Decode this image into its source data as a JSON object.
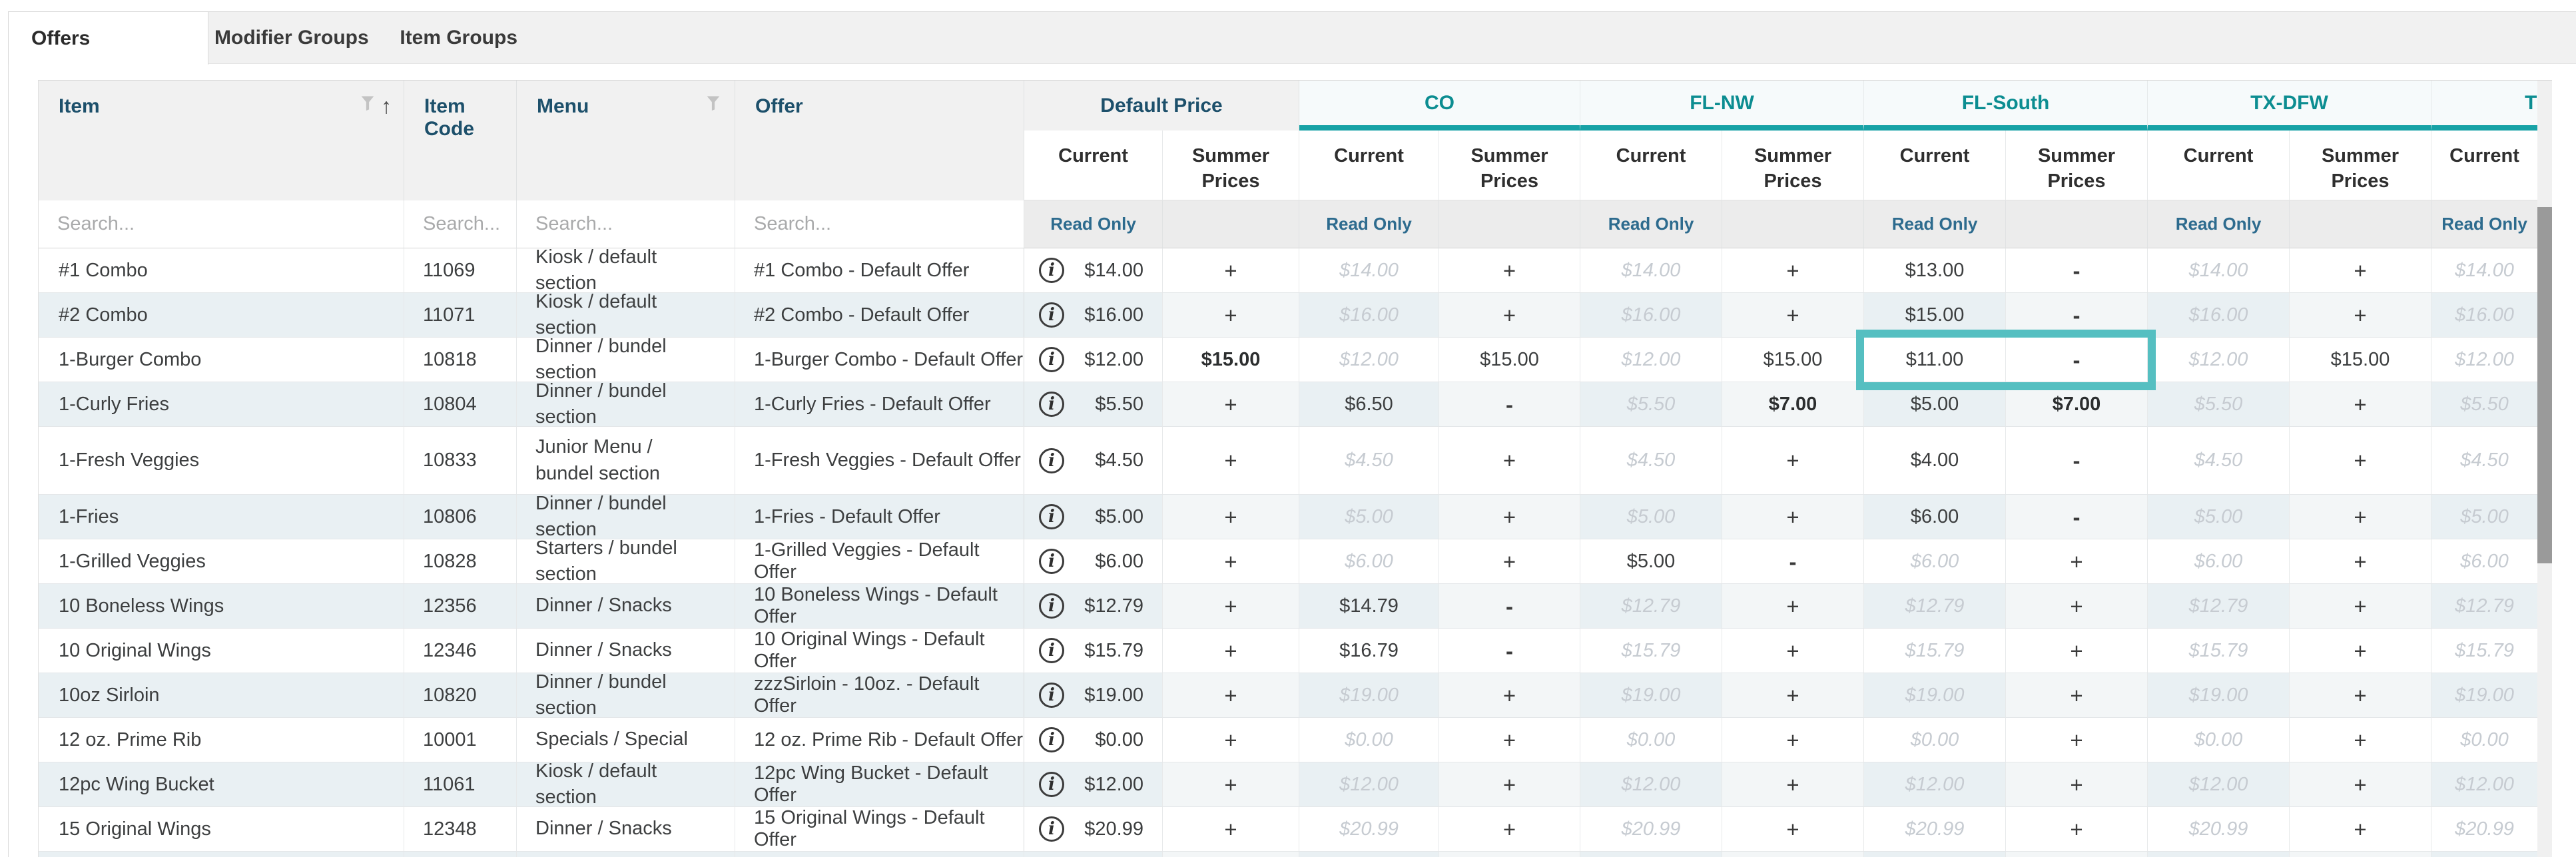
{
  "tabs": {
    "items": [
      {
        "label": "Offers",
        "active": true
      },
      {
        "label": "Modifier Groups",
        "active": false
      },
      {
        "label": "Item Groups",
        "active": false
      }
    ]
  },
  "table": {
    "search_placeholder": "Search...",
    "read_only_label": "Read Only",
    "columns": {
      "item": "Item",
      "item_code": "Item Code",
      "menu": "Menu",
      "offer": "Offer"
    },
    "sub_columns": {
      "current": "Current",
      "summer": "Summer Prices"
    },
    "groups": [
      {
        "label": "Default Price",
        "type": "default"
      },
      {
        "label": "CO",
        "type": "region"
      },
      {
        "label": "FL-NW",
        "type": "region"
      },
      {
        "label": "FL-South",
        "type": "region"
      },
      {
        "label": "TX-DFW",
        "type": "region"
      },
      {
        "label": "TX",
        "type": "region",
        "truncated": true
      }
    ],
    "highlight": {
      "item": "1-Burger Combo",
      "group": "FL-South"
    },
    "rows": [
      {
        "item": "#1 Combo",
        "code": "11069",
        "menu": "Kiosk / default section",
        "offer": "#1 Combo - Default Offer",
        "cells": [
          {
            "t": "$14.00",
            "s": "ovr"
          },
          {
            "t": "+",
            "s": "btn"
          },
          {
            "t": "$14.00",
            "s": "inh"
          },
          {
            "t": "+",
            "s": "btn"
          },
          {
            "t": "$14.00",
            "s": "inh"
          },
          {
            "t": "+",
            "s": "btn"
          },
          {
            "t": "$13.00",
            "s": "ovr"
          },
          {
            "t": "-",
            "s": "btn"
          },
          {
            "t": "$14.00",
            "s": "inh"
          },
          {
            "t": "+",
            "s": "btn"
          },
          {
            "t": "$14.00",
            "s": "inh"
          }
        ]
      },
      {
        "item": "#2 Combo",
        "code": "11071",
        "menu": "Kiosk / default section",
        "offer": "#2 Combo - Default Offer",
        "cells": [
          {
            "t": "$16.00",
            "s": "ovr"
          },
          {
            "t": "+",
            "s": "btn"
          },
          {
            "t": "$16.00",
            "s": "inh"
          },
          {
            "t": "+",
            "s": "btn"
          },
          {
            "t": "$16.00",
            "s": "inh"
          },
          {
            "t": "+",
            "s": "btn"
          },
          {
            "t": "$15.00",
            "s": "ovr"
          },
          {
            "t": "-",
            "s": "btn"
          },
          {
            "t": "$16.00",
            "s": "inh"
          },
          {
            "t": "+",
            "s": "btn"
          },
          {
            "t": "$16.00",
            "s": "inh"
          }
        ]
      },
      {
        "item": "1-Burger Combo",
        "code": "10818",
        "menu": "Dinner / bundel section",
        "offer": "1-Burger Combo - Default Offer",
        "cells": [
          {
            "t": "$12.00",
            "s": "ovr"
          },
          {
            "t": "$15.00",
            "s": "b"
          },
          {
            "t": "$12.00",
            "s": "inh"
          },
          {
            "t": "$15.00",
            "s": "ovr"
          },
          {
            "t": "$12.00",
            "s": "inh"
          },
          {
            "t": "$15.00",
            "s": "ovr"
          },
          {
            "t": "$11.00",
            "s": "ovr"
          },
          {
            "t": "-",
            "s": "btn"
          },
          {
            "t": "$12.00",
            "s": "inh"
          },
          {
            "t": "$15.00",
            "s": "ovr"
          },
          {
            "t": "$12.00",
            "s": "inh"
          }
        ]
      },
      {
        "item": "1-Curly Fries",
        "code": "10804",
        "menu": "Dinner / bundel section",
        "offer": "1-Curly Fries - Default Offer",
        "cells": [
          {
            "t": "$5.50",
            "s": "ovr"
          },
          {
            "t": "+",
            "s": "btn"
          },
          {
            "t": "$6.50",
            "s": "ovr"
          },
          {
            "t": "-",
            "s": "btn"
          },
          {
            "t": "$5.50",
            "s": "inh"
          },
          {
            "t": "$7.00",
            "s": "b"
          },
          {
            "t": "$5.00",
            "s": "ovr"
          },
          {
            "t": "$7.00",
            "s": "b"
          },
          {
            "t": "$5.50",
            "s": "inh"
          },
          {
            "t": "+",
            "s": "btn"
          },
          {
            "t": "$5.50",
            "s": "inh"
          }
        ]
      },
      {
        "item": "1-Fresh Veggies",
        "code": "10833",
        "menu": "Junior Menu / bundel section",
        "offer": "1-Fresh Veggies - Default Offer",
        "cells": [
          {
            "t": "$4.50",
            "s": "ovr"
          },
          {
            "t": "+",
            "s": "btn"
          },
          {
            "t": "$4.50",
            "s": "inh"
          },
          {
            "t": "+",
            "s": "btn"
          },
          {
            "t": "$4.50",
            "s": "inh"
          },
          {
            "t": "+",
            "s": "btn"
          },
          {
            "t": "$4.00",
            "s": "ovr"
          },
          {
            "t": "-",
            "s": "btn"
          },
          {
            "t": "$4.50",
            "s": "inh"
          },
          {
            "t": "+",
            "s": "btn"
          },
          {
            "t": "$4.50",
            "s": "inh"
          }
        ]
      },
      {
        "item": "1-Fries",
        "code": "10806",
        "menu": "Dinner / bundel section",
        "offer": "1-Fries - Default Offer",
        "cells": [
          {
            "t": "$5.00",
            "s": "ovr"
          },
          {
            "t": "+",
            "s": "btn"
          },
          {
            "t": "$5.00",
            "s": "inh"
          },
          {
            "t": "+",
            "s": "btn"
          },
          {
            "t": "$5.00",
            "s": "inh"
          },
          {
            "t": "+",
            "s": "btn"
          },
          {
            "t": "$6.00",
            "s": "ovr"
          },
          {
            "t": "-",
            "s": "btn"
          },
          {
            "t": "$5.00",
            "s": "inh"
          },
          {
            "t": "+",
            "s": "btn"
          },
          {
            "t": "$5.00",
            "s": "inh"
          }
        ]
      },
      {
        "item": "1-Grilled Veggies",
        "code": "10828",
        "menu": "Starters / bundel section",
        "offer": "1-Grilled Veggies - Default Offer",
        "cells": [
          {
            "t": "$6.00",
            "s": "ovr"
          },
          {
            "t": "+",
            "s": "btn"
          },
          {
            "t": "$6.00",
            "s": "inh"
          },
          {
            "t": "+",
            "s": "btn"
          },
          {
            "t": "$5.00",
            "s": "ovr"
          },
          {
            "t": "-",
            "s": "btn"
          },
          {
            "t": "$6.00",
            "s": "inh"
          },
          {
            "t": "+",
            "s": "btn"
          },
          {
            "t": "$6.00",
            "s": "inh"
          },
          {
            "t": "+",
            "s": "btn"
          },
          {
            "t": "$6.00",
            "s": "inh"
          }
        ]
      },
      {
        "item": "10 Boneless Wings",
        "code": "12356",
        "menu": "Dinner / Snacks",
        "offer": "10 Boneless Wings - Default Offer",
        "cells": [
          {
            "t": "$12.79",
            "s": "ovr"
          },
          {
            "t": "+",
            "s": "btn"
          },
          {
            "t": "$14.79",
            "s": "ovr"
          },
          {
            "t": "-",
            "s": "btn"
          },
          {
            "t": "$12.79",
            "s": "inh"
          },
          {
            "t": "+",
            "s": "btn"
          },
          {
            "t": "$12.79",
            "s": "inh"
          },
          {
            "t": "+",
            "s": "btn"
          },
          {
            "t": "$12.79",
            "s": "inh"
          },
          {
            "t": "+",
            "s": "btn"
          },
          {
            "t": "$12.79",
            "s": "inh"
          }
        ]
      },
      {
        "item": "10 Original Wings",
        "code": "12346",
        "menu": "Dinner / Snacks",
        "offer": "10 Original Wings - Default Offer",
        "cells": [
          {
            "t": "$15.79",
            "s": "ovr"
          },
          {
            "t": "+",
            "s": "btn"
          },
          {
            "t": "$16.79",
            "s": "ovr"
          },
          {
            "t": "-",
            "s": "btn"
          },
          {
            "t": "$15.79",
            "s": "inh"
          },
          {
            "t": "+",
            "s": "btn"
          },
          {
            "t": "$15.79",
            "s": "inh"
          },
          {
            "t": "+",
            "s": "btn"
          },
          {
            "t": "$15.79",
            "s": "inh"
          },
          {
            "t": "+",
            "s": "btn"
          },
          {
            "t": "$15.79",
            "s": "inh"
          }
        ]
      },
      {
        "item": "10oz Sirloin",
        "code": "10820",
        "menu": "Dinner / bundel section",
        "offer": "zzzSirloin - 10oz. - Default Offer",
        "cells": [
          {
            "t": "$19.00",
            "s": "ovr"
          },
          {
            "t": "+",
            "s": "btn"
          },
          {
            "t": "$19.00",
            "s": "inh"
          },
          {
            "t": "+",
            "s": "btn"
          },
          {
            "t": "$19.00",
            "s": "inh"
          },
          {
            "t": "+",
            "s": "btn"
          },
          {
            "t": "$19.00",
            "s": "inh"
          },
          {
            "t": "+",
            "s": "btn"
          },
          {
            "t": "$19.00",
            "s": "inh"
          },
          {
            "t": "+",
            "s": "btn"
          },
          {
            "t": "$19.00",
            "s": "inh"
          }
        ]
      },
      {
        "item": "12 oz. Prime Rib",
        "code": "10001",
        "menu": "Specials / Special",
        "offer": "12 oz. Prime Rib - Default Offer",
        "cells": [
          {
            "t": "$0.00",
            "s": "ovr"
          },
          {
            "t": "+",
            "s": "btn"
          },
          {
            "t": "$0.00",
            "s": "inh"
          },
          {
            "t": "+",
            "s": "btn"
          },
          {
            "t": "$0.00",
            "s": "inh"
          },
          {
            "t": "+",
            "s": "btn"
          },
          {
            "t": "$0.00",
            "s": "inh"
          },
          {
            "t": "+",
            "s": "btn"
          },
          {
            "t": "$0.00",
            "s": "inh"
          },
          {
            "t": "+",
            "s": "btn"
          },
          {
            "t": "$0.00",
            "s": "inh"
          }
        ]
      },
      {
        "item": "12pc Wing Bucket",
        "code": "11061",
        "menu": "Kiosk / default section",
        "offer": "12pc Wing Bucket - Default Offer",
        "cells": [
          {
            "t": "$12.00",
            "s": "ovr"
          },
          {
            "t": "+",
            "s": "btn"
          },
          {
            "t": "$12.00",
            "s": "inh"
          },
          {
            "t": "+",
            "s": "btn"
          },
          {
            "t": "$12.00",
            "s": "inh"
          },
          {
            "t": "+",
            "s": "btn"
          },
          {
            "t": "$12.00",
            "s": "inh"
          },
          {
            "t": "+",
            "s": "btn"
          },
          {
            "t": "$12.00",
            "s": "inh"
          },
          {
            "t": "+",
            "s": "btn"
          },
          {
            "t": "$12.00",
            "s": "inh"
          }
        ]
      },
      {
        "item": "15 Original Wings",
        "code": "12348",
        "menu": "Dinner / Snacks",
        "offer": "15 Original Wings - Default Offer",
        "cells": [
          {
            "t": "$20.99",
            "s": "ovr"
          },
          {
            "t": "+",
            "s": "btn"
          },
          {
            "t": "$20.99",
            "s": "inh"
          },
          {
            "t": "+",
            "s": "btn"
          },
          {
            "t": "$20.99",
            "s": "inh"
          },
          {
            "t": "+",
            "s": "btn"
          },
          {
            "t": "$20.99",
            "s": "inh"
          },
          {
            "t": "+",
            "s": "btn"
          },
          {
            "t": "$20.99",
            "s": "inh"
          },
          {
            "t": "+",
            "s": "btn"
          },
          {
            "t": "$20.99",
            "s": "inh"
          }
        ]
      }
    ]
  },
  "colors": {
    "accent_teal": "#17a2a6",
    "region_label_teal": "#0c8d91",
    "highlight_border": "#55bfc1",
    "header_blue": "#1d506b",
    "read_only_blue": "#2d6b8e",
    "row_stripe": "#e9f0f3",
    "inherited_text": "#c6cbd1"
  }
}
